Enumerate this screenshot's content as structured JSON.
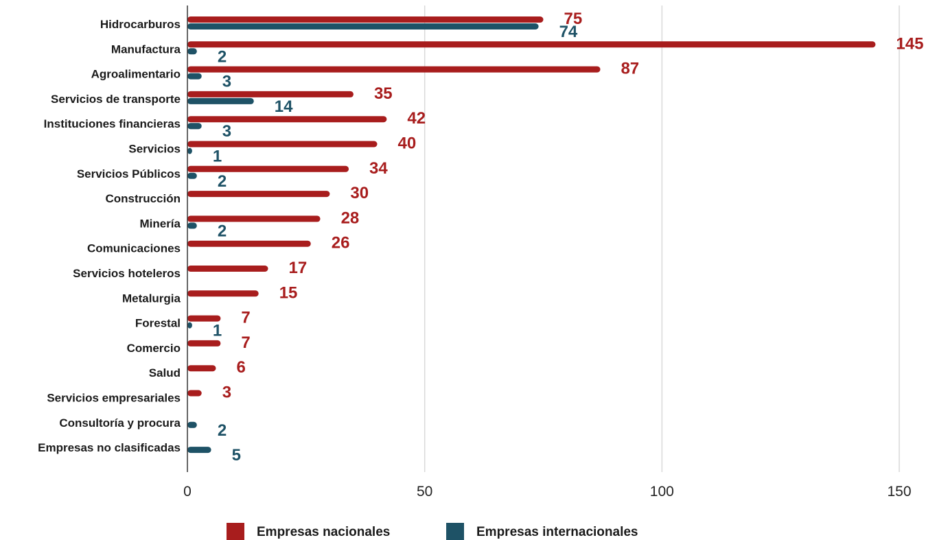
{
  "chart_data": {
    "type": "bar",
    "orientation": "horizontal",
    "categories": [
      "Hidrocarburos",
      "Manufactura",
      "Agroalimentario",
      "Servicios de transporte",
      "Instituciones financieras",
      "Servicios",
      "Servicios Públicos",
      "Construcción",
      "Minería",
      "Comunicaciones",
      "Servicios hoteleros",
      "Metalurgia",
      "Forestal",
      "Comercio",
      "Salud",
      "Servicios empresariales",
      "Consultoría y procura",
      "Empresas no clasificadas"
    ],
    "series": [
      {
        "name": "Empresas nacionales",
        "color": "#a81d1d",
        "values": [
          75,
          145,
          87,
          35,
          42,
          40,
          34,
          30,
          28,
          26,
          17,
          15,
          7,
          7,
          6,
          3,
          null,
          null
        ]
      },
      {
        "name": "Empresas internacionales",
        "color": "#1e5266",
        "values": [
          74,
          2,
          3,
          14,
          3,
          1,
          2,
          null,
          2,
          null,
          null,
          null,
          1,
          null,
          null,
          null,
          2,
          5
        ]
      }
    ],
    "xlim": [
      0,
      150
    ],
    "xticks": [
      "0",
      "50",
      "100",
      "150"
    ],
    "grid": "vertical",
    "legend": "bottom",
    "title": "",
    "xlabel": "",
    "ylabel": ""
  }
}
